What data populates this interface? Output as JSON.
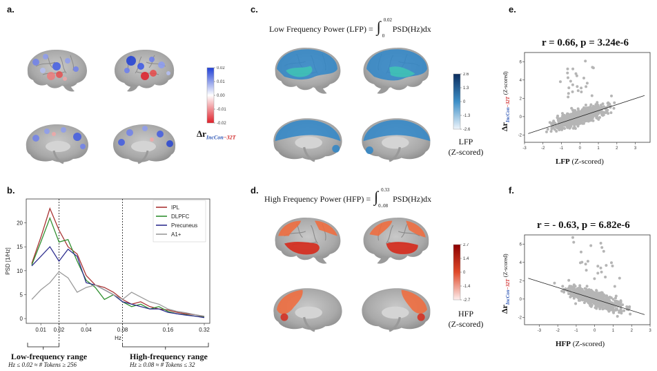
{
  "labels": {
    "a": "a.",
    "b": "b.",
    "c": "c.",
    "d": "d.",
    "e": "e.",
    "f": "f."
  },
  "panel_a": {
    "colorbar_ticks": [
      "0.02",
      "0.01",
      "0.00",
      "-0.01",
      "-0.02"
    ],
    "colorbar_label_main": "Δr",
    "colorbar_label_sub1": "IncCon",
    "colorbar_label_sub2": "−32T",
    "colors": {
      "pos": "#1f3fd6",
      "neg": "#e0202a"
    }
  },
  "panel_c": {
    "formula_left": "Low Frequency Power (LFP) =",
    "int_upper": "0.02",
    "int_lower": "0",
    "integrand": "PSD(Hz)dx",
    "colorbar_ticks": [
      "2.6",
      "1.3",
      "0",
      "-1.3",
      "-2.6"
    ],
    "legend_line1": "LFP",
    "legend_line2": "(Z-scored)"
  },
  "panel_d": {
    "formula_left": "High Frequency Power (HFP) =",
    "int_upper": "0.33",
    "int_lower": "0..08",
    "integrand": "PSD(Hz)dx",
    "colorbar_ticks": [
      "2.7",
      "1.4",
      "0",
      "-1.4",
      "-2.7"
    ],
    "legend_line1": "HFP",
    "legend_line2": "(Z-scored)"
  },
  "panel_b": {
    "ylabel": "PSD [1/Hz]",
    "xlabel": "Hz",
    "low_range_title": "Low-frequency range",
    "low_range_sub": "Hz ≤ 0.02 ≈ # Tokens ≥ 256",
    "high_range_title": "High-frequency range",
    "high_range_sub": "Hz ≥ 0.08 ≈ # Tokens ≤ 32"
  },
  "panel_e": {
    "title": "r = 0.66, p = 3.24e-6",
    "ylabel_main": "Δr",
    "ylabel_sub1": "IncCon",
    "ylabel_sub2": "−32T",
    "ylabel_tail": "(Z-scored)",
    "xlabel_bold": "LFP",
    "xlabel_tail": "(Z-scored)"
  },
  "panel_f": {
    "title": "r = - 0.63, p = 6.82e-6",
    "ylabel_main": "Δr",
    "ylabel_sub1": "IncCon",
    "ylabel_sub2": "−32T",
    "ylabel_tail": "(Z-scored)",
    "xlabel_bold": "HFP",
    "xlabel_tail": "(Z-scored)"
  },
  "chart_data": [
    {
      "type": "line",
      "x": [
        "0.005",
        "0.01",
        "0.015",
        "0.02",
        "0.025",
        "0.03",
        "0.04",
        "0.05",
        "0.06",
        "0.07",
        "0.08",
        "0.09",
        "0.10",
        "0.12",
        "0.14",
        "0.16",
        "0.20",
        "0.24",
        "0.28",
        "0.32"
      ],
      "xticks": [
        "0.01",
        "0.02",
        "0.04",
        "0.08",
        "0.16",
        "0.32"
      ],
      "xtick_index": [
        1,
        3,
        6,
        10,
        15,
        19
      ],
      "yticks": [
        0,
        5,
        10,
        15,
        20
      ],
      "ylim": [
        -1,
        25
      ],
      "vlines_index": [
        3,
        10
      ],
      "series": [
        {
          "name": "IPL",
          "color": "#a83232",
          "values": [
            11.5,
            17,
            23,
            18.5,
            15,
            13.5,
            9,
            7,
            6.5,
            5.5,
            4,
            3,
            3.5,
            2.5,
            2,
            1.8,
            1.3,
            1,
            0.8,
            0.4
          ]
        },
        {
          "name": "DLPFC",
          "color": "#2f8f2f",
          "values": [
            11.2,
            16,
            21,
            16,
            16.5,
            12,
            8,
            6.5,
            4,
            5,
            3.5,
            2.5,
            3,
            2,
            2.5,
            1.5,
            1,
            0.8,
            0.5,
            0.3
          ]
        },
        {
          "name": "Precuneus",
          "color": "#2f2f8f",
          "values": [
            11,
            13,
            15,
            12,
            14.5,
            13,
            7.5,
            7,
            6,
            5,
            3.5,
            3,
            2.5,
            2,
            2,
            1.3,
            1,
            0.7,
            0.5,
            0.2
          ]
        },
        {
          "name": "A1+",
          "color": "#9a9a9a",
          "values": [
            4,
            6,
            7.5,
            9.8,
            8.5,
            5.5,
            6.5,
            7,
            6,
            5,
            4,
            5.5,
            4.5,
            3.5,
            3,
            2,
            1.5,
            1.2,
            0.8,
            0.5
          ]
        }
      ]
    },
    {
      "type": "scatter",
      "title": "r = 0.66, p = 3.24e-6",
      "xlim": [
        -3,
        3.8
      ],
      "ylim": [
        -2.8,
        7
      ],
      "xticks": [
        -3,
        -2,
        -1,
        0,
        1,
        2,
        3
      ],
      "yticks": [
        -2,
        0,
        2,
        4,
        6
      ],
      "fit": {
        "slope": 0.66,
        "intercept": 0
      },
      "point_color": "#7a7a7a"
    },
    {
      "type": "scatter",
      "title": "r = - 0.63, p = 6.82e-6",
      "xlim": [
        -3.8,
        3
      ],
      "ylim": [
        -2.8,
        7
      ],
      "xticks": [
        -3,
        -2,
        -1,
        0,
        1,
        2,
        3
      ],
      "yticks": [
        -2,
        0,
        2,
        4,
        6
      ],
      "fit": {
        "slope": -0.63,
        "intercept": 0
      },
      "point_color": "#7a7a7a"
    }
  ]
}
